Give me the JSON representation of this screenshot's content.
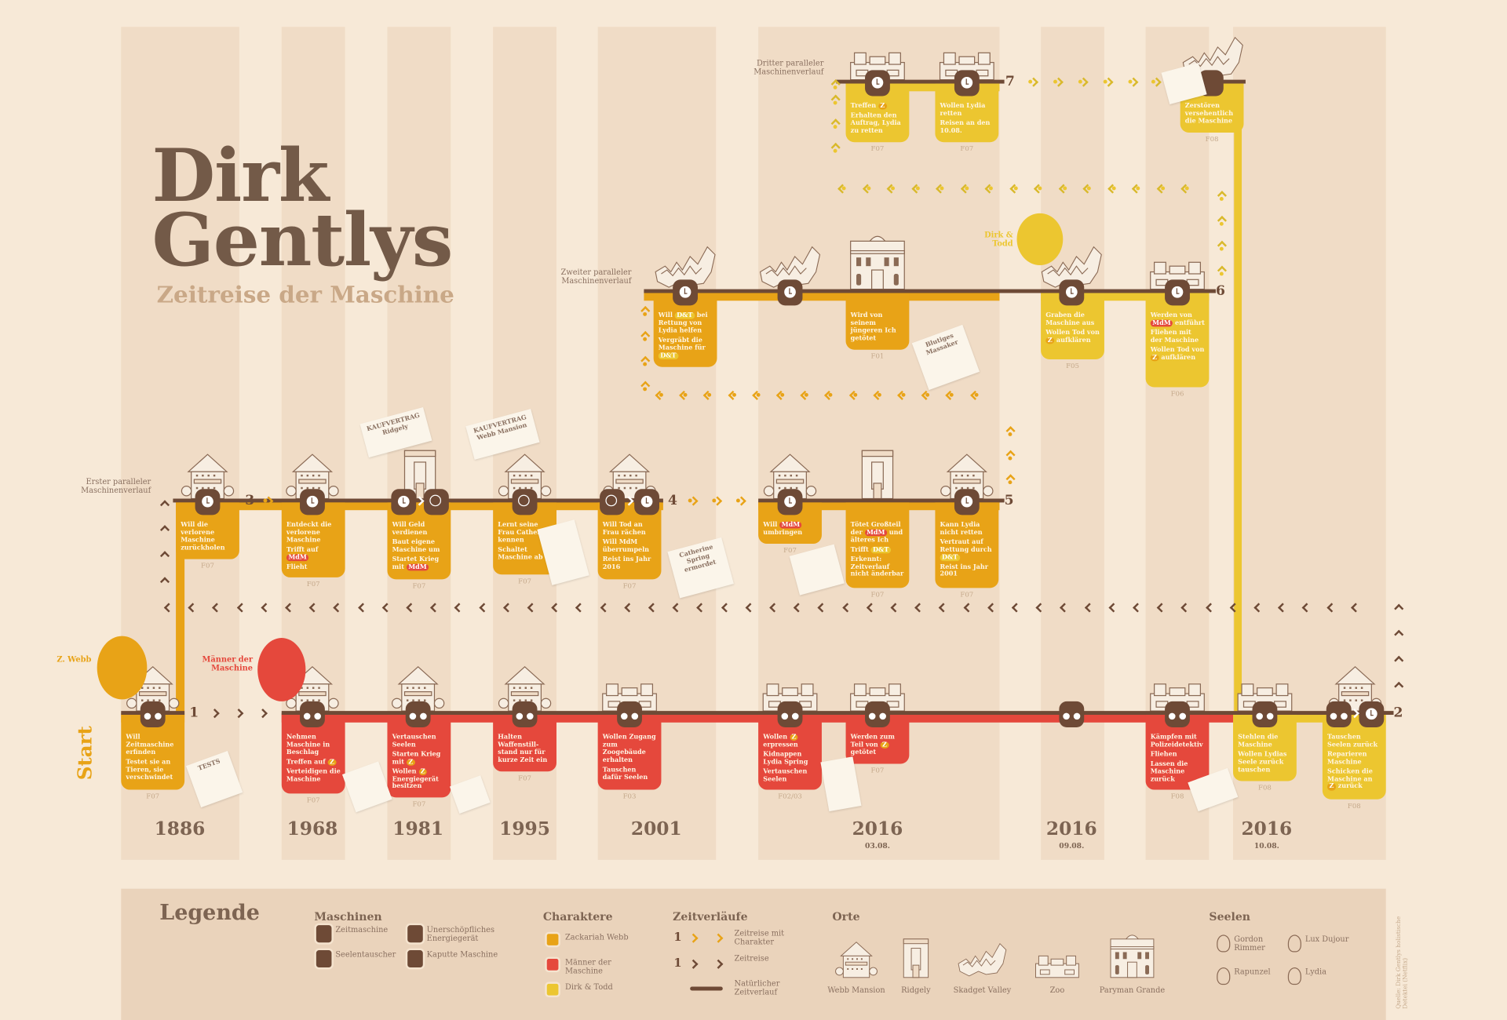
{
  "header": {
    "title_line1": "Dirk",
    "title_line2": "Gentlys",
    "subtitle": "Zeitreise der Maschine"
  },
  "colors": {
    "background": "#f7e9d7",
    "stripe": "#f0dcc6",
    "line": "#6e4a36",
    "zackariah_webb": "#e8a317",
    "maenner_der_maschine": "#e5483c",
    "dirk_todd": "#ecc630",
    "legend_bg": "#ead3bb"
  },
  "labels": {
    "start": "Start",
    "z_webb": "Z. Webb",
    "maenner": "Männer der Maschine",
    "dirk_todd": "Dirk & Todd",
    "row_erster": "Erster paralleler Maschinenverlauf",
    "row_zweiter": "Zweiter paralleler Maschinenverlauf",
    "row_dritter": "Dritter paralleler Maschinenverlauf"
  },
  "step_numbers": [
    "1",
    "2",
    "3",
    "4",
    "5",
    "6",
    "7"
  ],
  "years": [
    {
      "year": "1886",
      "date": ""
    },
    {
      "year": "1968",
      "date": ""
    },
    {
      "year": "1981",
      "date": ""
    },
    {
      "year": "1995",
      "date": ""
    },
    {
      "year": "2001",
      "date": ""
    },
    {
      "year": "2016",
      "date": "03.08."
    },
    {
      "year": "2016",
      "date": "09.08."
    },
    {
      "year": "2016",
      "date": "10.08."
    }
  ],
  "papers": {
    "kaufvertrag_ridgely": "KAUFVERTRAG Ridgely",
    "kaufvertrag_webb": "KAUFVERTRAG Webb Mansion",
    "catherine": "Catherine Spring ermordet",
    "massaker": "Blutiges Massaker",
    "tests": "TESTS"
  },
  "timelines": {
    "main": [
      {
        "char": "webb",
        "nodes": [
          "seele"
        ],
        "ref": "F07",
        "lines": [
          "Will Zeitmaschine erfinden",
          "Testet sie an Tieren, sie verschwindet"
        ]
      },
      {
        "char": "mdm",
        "nodes": [
          "seele"
        ],
        "ref": "F07",
        "lines": [
          "Nehmen Maschine in Beschlag",
          "Treffen auf {Z}",
          "Verteidigen die Maschine"
        ]
      },
      {
        "char": "mdm",
        "nodes": [
          "seele"
        ],
        "ref": "F07",
        "lines": [
          "Vertauschen Seelen",
          "Starten Krieg mit {Z}",
          "Wollen {Z} Energiegerät besitzen"
        ]
      },
      {
        "char": "mdm",
        "nodes": [
          "seele"
        ],
        "ref": "F07",
        "lines": [
          "Halten Waffenstill-stand nur für kurze Zeit ein"
        ]
      },
      {
        "char": "mdm",
        "nodes": [
          "seele"
        ],
        "ref": "F03",
        "lines": [
          "Wollen Zugang zum Zoogebäude erhalten",
          "Tauschen dafür Seelen"
        ]
      },
      {
        "char": "mdm",
        "nodes": [
          "seele"
        ],
        "ref": "F02/03",
        "lines": [
          "Wollen {Z} erpressen",
          "Kidnappen Lydia Spring",
          "Vertauschen Seelen"
        ]
      },
      {
        "char": "mdm",
        "nodes": [
          "seele"
        ],
        "ref": "F07",
        "lines": [
          "Werden zum Teil von {Z} getötet"
        ]
      },
      {
        "char": "none",
        "nodes": [
          "seele"
        ],
        "ref": "",
        "lines": []
      },
      {
        "char": "mdm",
        "nodes": [
          "seele"
        ],
        "ref": "F08",
        "lines": [
          "Kämpfen mit Polizeidetektiv",
          "Fliehen",
          "Lassen die Maschine zurück"
        ]
      },
      {
        "char": "dt",
        "nodes": [
          "seele"
        ],
        "ref": "F08",
        "lines": [
          "Stehlen die Maschine",
          "Wollen Lydias Seele zurück tauschen"
        ]
      },
      {
        "char": "dt",
        "nodes": [
          "seele",
          "clock"
        ],
        "ref": "F08",
        "lines": [
          "Tauschen Seelen zurück",
          "Reparieren Maschine",
          "Schicken die Maschine an {Z} zurück"
        ]
      }
    ],
    "erster": [
      {
        "char": "webb",
        "nodes": [
          "clock"
        ],
        "ref": "F07",
        "lines": [
          "Will die verlorene Maschine zurückholen"
        ]
      },
      {
        "char": "webb",
        "nodes": [
          "clock"
        ],
        "ref": "F07",
        "lines": [
          "Entdeckt die verlorene Maschine",
          "Trifft auf {MdM}",
          "Flieht"
        ]
      },
      {
        "char": "webb",
        "nodes": [
          "clock",
          "energy"
        ],
        "ref": "F07",
        "lines": [
          "Will Geld verdienen",
          "Baut eigene Maschine um",
          "Startet Krieg mit {MdM}"
        ]
      },
      {
        "char": "webb",
        "nodes": [
          "energy"
        ],
        "ref": "F07",
        "lines": [
          "Lernt seine Frau Catherine kennen",
          "Schaltet Maschine ab"
        ]
      },
      {
        "char": "webb",
        "nodes": [
          "energy",
          "clock"
        ],
        "ref": "F07",
        "lines": [
          "Will Tod an Frau rächen",
          "Will MdM überrumpeln",
          "Reist ins Jahr 2016"
        ]
      },
      {
        "char": "webb",
        "nodes": [
          "clock"
        ],
        "ref": "F07",
        "lines": [
          "Will {MdM} umbringen"
        ]
      },
      {
        "char": "webb",
        "nodes": [],
        "ref": "F07",
        "lines": [
          "Tötet Großteil der {MdM} und älteres Ich",
          "Trifft {D&T}",
          "Erkennt: Zeitverlauf nicht änderbar"
        ]
      },
      {
        "char": "webb",
        "nodes": [
          "clock"
        ],
        "ref": "F07",
        "lines": [
          "Kann Lydia nicht retten",
          "Vertraut auf Rettung durch {D&T}",
          "Reist ins Jahr 2001"
        ]
      }
    ],
    "zweiter": [
      {
        "char": "webb",
        "nodes": [
          "clock"
        ],
        "ref": "",
        "lines": [
          "Will {D&T} bei Rettung von Lydia helfen",
          "Vergräbt die Maschine für {D&T}"
        ]
      },
      {
        "char": "none",
        "nodes": [
          "clock"
        ],
        "ref": "",
        "lines": []
      },
      {
        "char": "webb",
        "nodes": [],
        "ref": "F01",
        "lines": [
          "Wird von seinem jüngeren Ich getötet"
        ]
      },
      {
        "char": "dt",
        "nodes": [
          "clock"
        ],
        "ref": "F05",
        "lines": [
          "Graben die Maschine aus",
          "Wollen Tod von {Z} aufklären"
        ]
      },
      {
        "char": "dt",
        "nodes": [
          "clock"
        ],
        "ref": "F06",
        "lines": [
          "Werden von {MdM} entführt",
          "Fliehen mit der Maschine",
          "Wollen Tod von {Z} aufklären"
        ]
      }
    ],
    "dritter": [
      {
        "char": "dt",
        "nodes": [
          "clock"
        ],
        "ref": "F07",
        "lines": [
          "Treffen {Z}",
          "Erhalten den Auftrag, Lydia zu retten"
        ]
      },
      {
        "char": "dt",
        "nodes": [
          "clock"
        ],
        "ref": "F07",
        "lines": [
          "Wollen Lydia retten",
          "Reisen an den 10.08."
        ]
      },
      {
        "char": "dt",
        "nodes": [
          "broken"
        ],
        "ref": "F08",
        "lines": [
          "Zerstören versehentlich die Maschine"
        ]
      }
    ]
  },
  "legend": {
    "title": "Legende",
    "machines": {
      "heading": "Maschinen",
      "items": [
        "Zeitmaschine",
        "Seelentauscher",
        "Unerschöpfliches Energiegerät",
        "Kaputte Maschine"
      ]
    },
    "characters": {
      "heading": "Charaktere",
      "items": [
        "Zackariah Webb",
        "Männer der Maschine",
        "Dirk & Todd"
      ]
    },
    "timelines": {
      "heading": "Zeitverläufe",
      "number": "1",
      "items": [
        "Zeitreise mit Charakter",
        "Zeitreise",
        "Natürlicher Zeitverlauf"
      ]
    },
    "places": {
      "heading": "Orte",
      "items": [
        "Webb Mansion",
        "Ridgely",
        "Skadget Valley",
        "Zoo",
        "Paryman Grande"
      ]
    },
    "souls": {
      "heading": "Seelen",
      "items": [
        "Gordon Rimmer",
        "Lux Dujour",
        "Rapunzel",
        "Lydia"
      ]
    }
  },
  "source": "Quelle: Dirk Gentlys holistische Detektei (Netflix)"
}
